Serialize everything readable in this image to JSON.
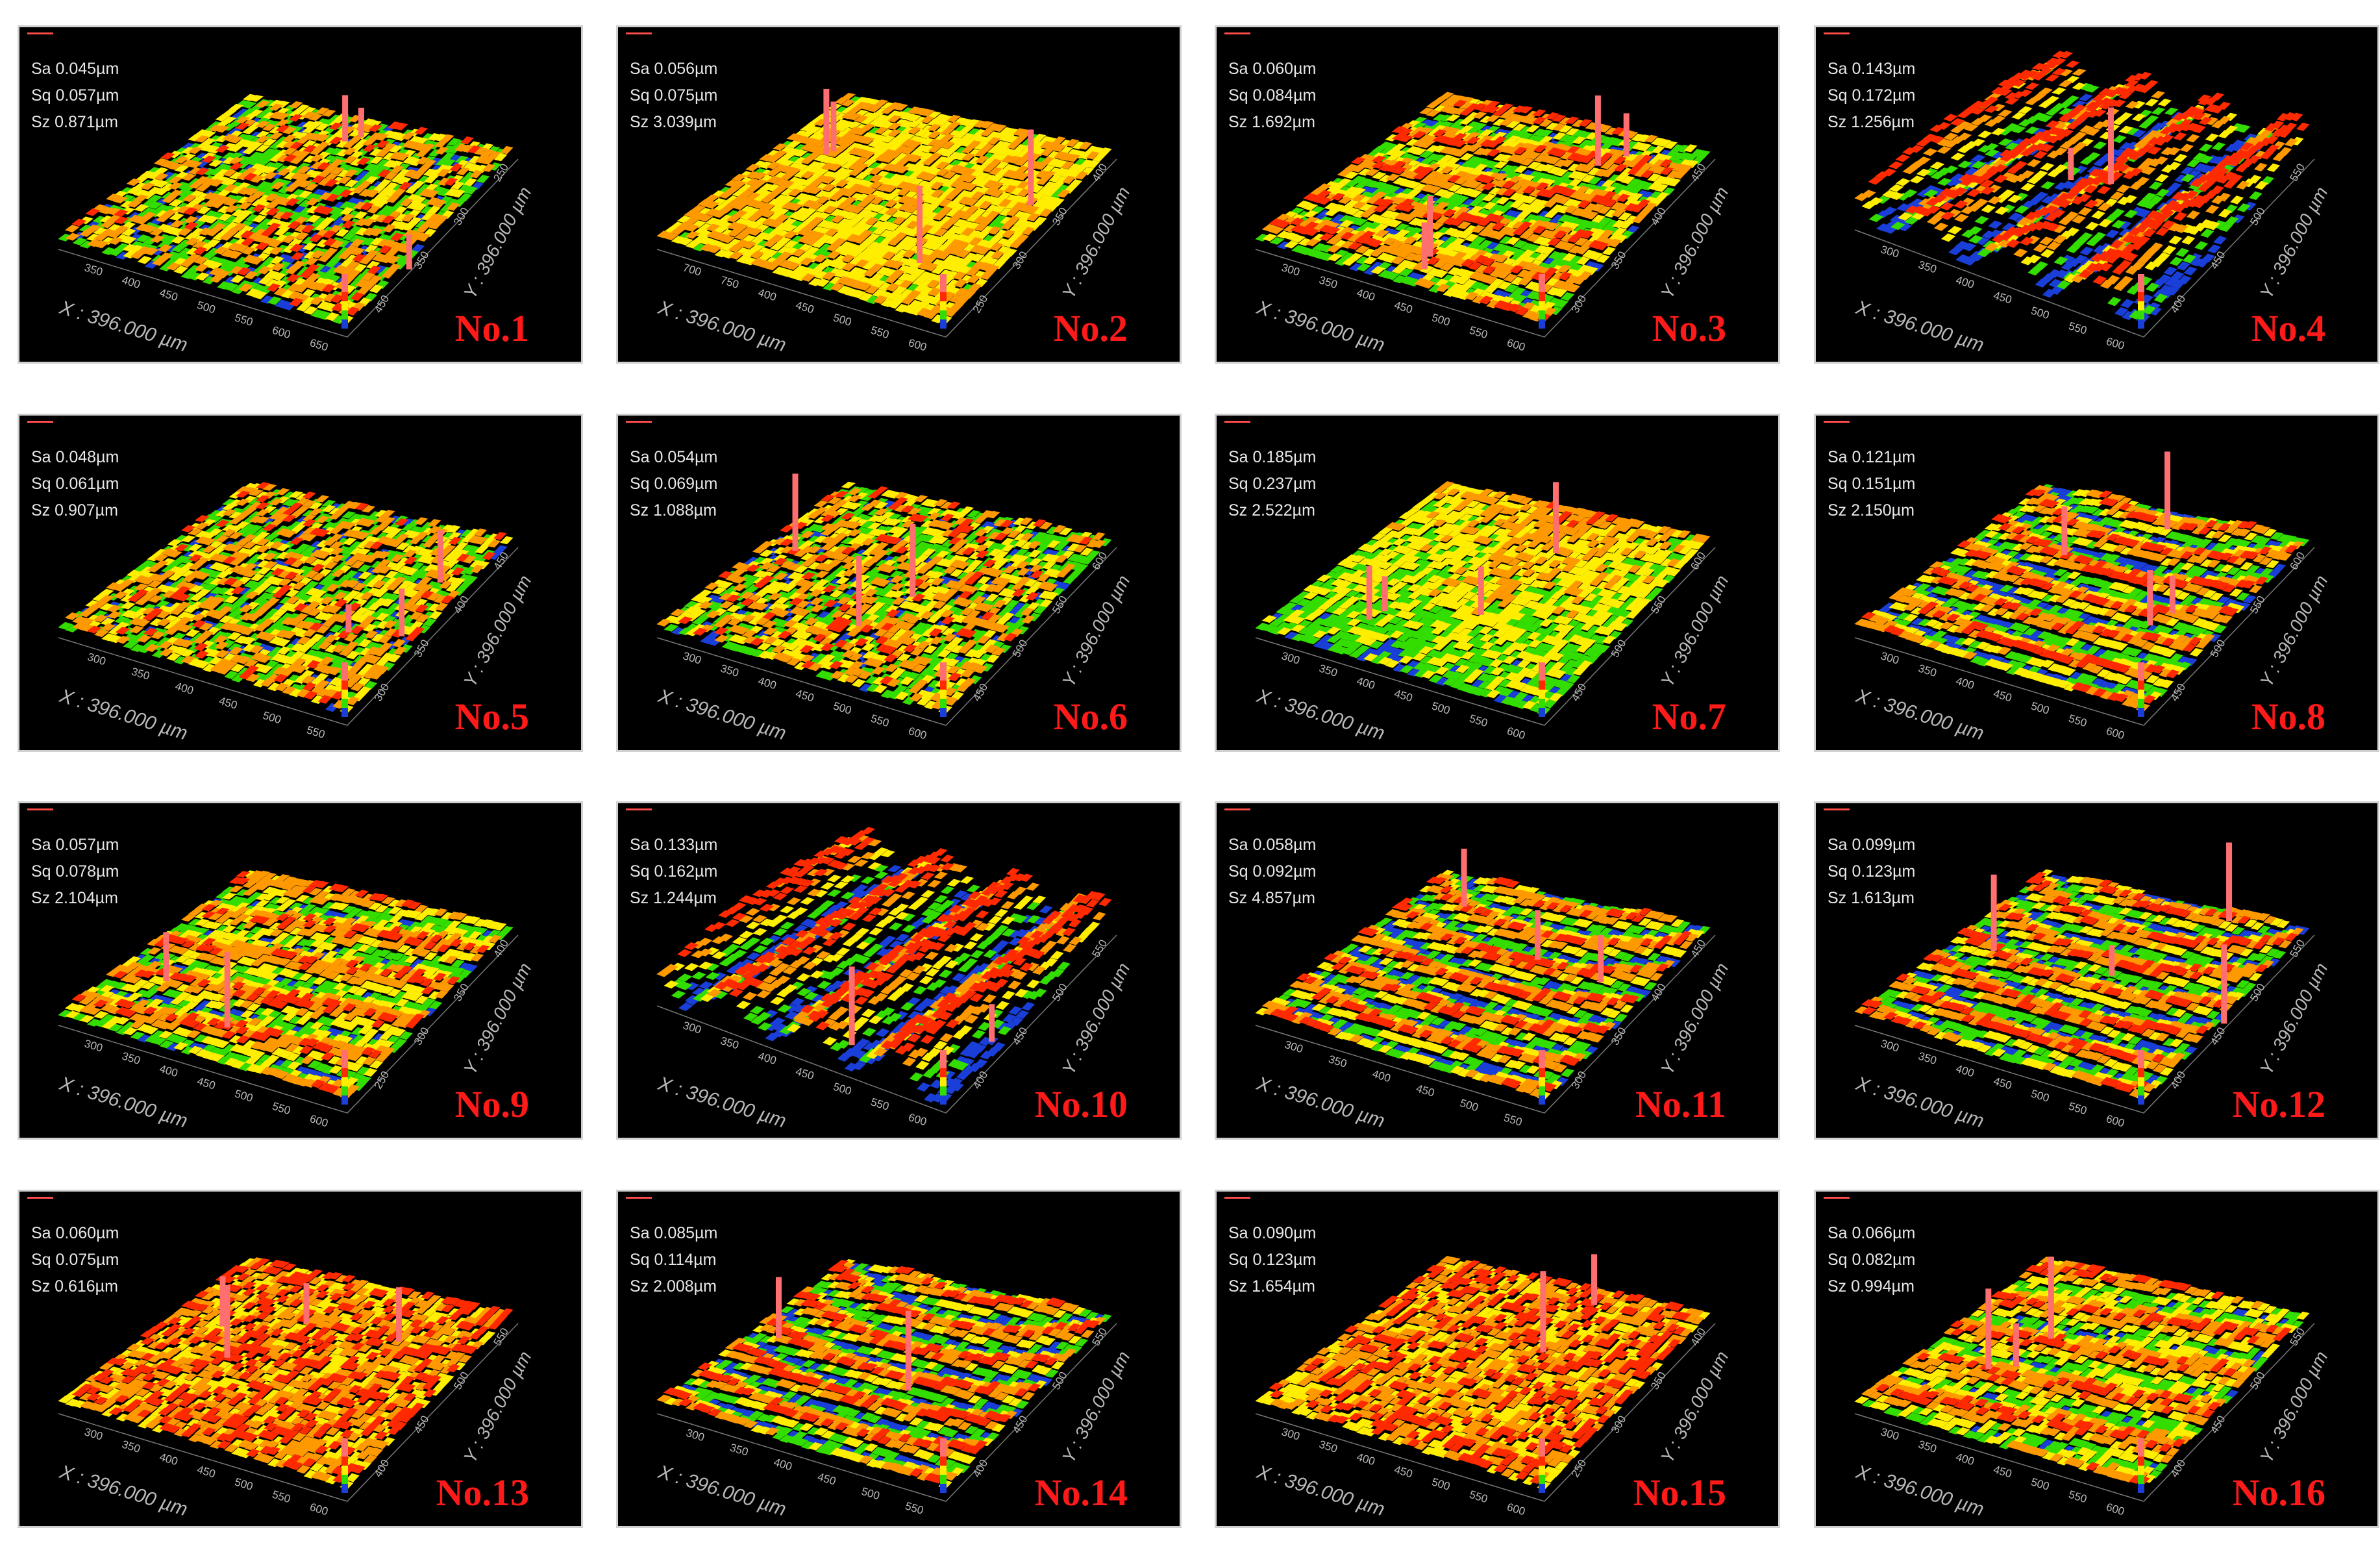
{
  "panels": [
    {
      "sa": "Sa 0.045µm",
      "sq": "Sq 0.057µm",
      "sz": "Sz 0.871µm",
      "label": "No.1",
      "x_axis": "X : 396.000 µm",
      "y_axis": "Y : 396.000 µm",
      "x_ticks": [
        "350",
        "400",
        "450",
        "500",
        "550",
        "600",
        "650"
      ],
      "y_ticks": [
        "450",
        "350",
        "300",
        "250"
      ],
      "style": "speckle"
    },
    {
      "sa": "Sa 0.056µm",
      "sq": "Sq 0.075µm",
      "sz": "Sz 3.039µm",
      "label": "No.2",
      "x_axis": "X : 396.000 µm",
      "y_axis": "Y : 396.000 µm",
      "x_ticks": [
        "700",
        "750",
        "400",
        "450",
        "500",
        "550",
        "600"
      ],
      "y_ticks": [
        "250",
        "300",
        "350",
        "400"
      ],
      "style": "flat"
    },
    {
      "sa": "Sa 0.060µm",
      "sq": "Sq 0.084µm",
      "sz": "Sz 1.692µm",
      "label": "No.3",
      "x_axis": "X : 396.000 µm",
      "y_axis": "Y : 396.000 µm",
      "x_ticks": [
        "300",
        "350",
        "400",
        "450",
        "500",
        "550",
        "600"
      ],
      "y_ticks": [
        "300",
        "350",
        "400",
        "450"
      ],
      "style": "stripes"
    },
    {
      "sa": "Sa 0.143µm",
      "sq": "Sq 0.172µm",
      "sz": "Sz 1.256µm",
      "label": "No.4",
      "x_axis": "X : 396.000 µm",
      "y_axis": "Y : 396.000 µm",
      "x_ticks": [
        "300",
        "350",
        "400",
        "450",
        "500",
        "550",
        "600"
      ],
      "y_ticks": [
        "400",
        "450",
        "500",
        "550"
      ],
      "style": "ridges"
    },
    {
      "sa": "Sa 0.048µm",
      "sq": "Sq 0.061µm",
      "sz": "Sz 0.907µm",
      "label": "No.5",
      "x_axis": "X : 396.000 µm",
      "y_axis": "Y : 396.000 µm",
      "x_ticks": [
        "300",
        "350",
        "400",
        "450",
        "500",
        "550"
      ],
      "y_ticks": [
        "300",
        "350",
        "400",
        "450"
      ],
      "style": "speckle"
    },
    {
      "sa": "Sa 0.054µm",
      "sq": "Sq 0.069µm",
      "sz": "Sz 1.088µm",
      "label": "No.6",
      "x_axis": "X : 396.000 µm",
      "y_axis": "Y : 396.000 µm",
      "x_ticks": [
        "300",
        "350",
        "400",
        "450",
        "500",
        "550",
        "600"
      ],
      "y_ticks": [
        "450",
        "500",
        "550",
        "600"
      ],
      "style": "speckle"
    },
    {
      "sa": "Sa 0.185µm",
      "sq": "Sq 0.237µm",
      "sz": "Sz 2.522µm",
      "label": "No.7",
      "x_axis": "X : 396.000 µm",
      "y_axis": "Y : 396.000 µm",
      "x_ticks": [
        "300",
        "350",
        "400",
        "450",
        "500",
        "550",
        "600"
      ],
      "y_ticks": [
        "450",
        "500",
        "550",
        "600"
      ],
      "style": "dome"
    },
    {
      "sa": "Sa 0.121µm",
      "sq": "Sq 0.151µm",
      "sz": "Sz 2.150µm",
      "label": "No.8",
      "x_axis": "X : 396.000 µm",
      "y_axis": "Y : 396.000 µm",
      "x_ticks": [
        "300",
        "350",
        "400",
        "450",
        "500",
        "550",
        "600"
      ],
      "y_ticks": [
        "450",
        "500",
        "550",
        "600"
      ],
      "style": "arcs"
    },
    {
      "sa": "Sa 0.057µm",
      "sq": "Sq 0.078µm",
      "sz": "Sz 2.104µm",
      "label": "No.9",
      "x_axis": "X : 396.000 µm",
      "y_axis": "Y : 396.000 µm",
      "x_ticks": [
        "300",
        "350",
        "400",
        "450",
        "500",
        "550",
        "600"
      ],
      "y_ticks": [
        "250",
        "300",
        "350",
        "400"
      ],
      "style": "stripes"
    },
    {
      "sa": "Sa 0.133µm",
      "sq": "Sq 0.162µm",
      "sz": "Sz 1.244µm",
      "label": "No.10",
      "x_axis": "X : 396.000 µm",
      "y_axis": "Y : 396.000 µm",
      "x_ticks": [
        "300",
        "350",
        "400",
        "450",
        "500",
        "550",
        "600"
      ],
      "y_ticks": [
        "400",
        "450",
        "500",
        "550"
      ],
      "style": "ridges"
    },
    {
      "sa": "Sa 0.058µm",
      "sq": "Sq 0.092µm",
      "sz": "Sz 4.857µm",
      "label": "No.11",
      "x_axis": "X : 396.000 µm",
      "y_axis": "Y : 396.000 µm",
      "x_ticks": [
        "300",
        "350",
        "400",
        "450",
        "500",
        "550"
      ],
      "y_ticks": [
        "300",
        "350",
        "400",
        "450"
      ],
      "style": "arcs"
    },
    {
      "sa": "Sa 0.099µm",
      "sq": "Sq 0.123µm",
      "sz": "Sz 1.613µm",
      "label": "No.12",
      "x_axis": "X : 396.000 µm",
      "y_axis": "Y : 396.000 µm",
      "x_ticks": [
        "300",
        "350",
        "400",
        "450",
        "500",
        "550",
        "600"
      ],
      "y_ticks": [
        "400",
        "450",
        "500",
        "550"
      ],
      "style": "arcs"
    },
    {
      "sa": "Sa 0.060µm",
      "sq": "Sq 0.075µm",
      "sz": "Sz 0.616µm",
      "label": "No.13",
      "x_axis": "X : 396.000 µm",
      "y_axis": "Y : 396.000 µm",
      "x_ticks": [
        "300",
        "350",
        "400",
        "450",
        "500",
        "550",
        "600"
      ],
      "y_ticks": [
        "400",
        "450",
        "500",
        "550"
      ],
      "style": "hot"
    },
    {
      "sa": "Sa 0.085µm",
      "sq": "Sq 0.114µm",
      "sz": "Sz 2.008µm",
      "label": "No.14",
      "x_axis": "X : 396.000 µm",
      "y_axis": "Y : 396.000 µm",
      "x_ticks": [
        "300",
        "350",
        "400",
        "450",
        "500",
        "550"
      ],
      "y_ticks": [
        "400",
        "450",
        "500",
        "550"
      ],
      "style": "arcs"
    },
    {
      "sa": "Sa 0.090µm",
      "sq": "Sq 0.123µm",
      "sz": "Sz 1.654µm",
      "label": "No.15",
      "x_axis": "X : 396.000 µm",
      "y_axis": "Y : 396.000 µm",
      "x_ticks": [
        "300",
        "350",
        "400",
        "450",
        "500",
        "550",
        "600"
      ],
      "y_ticks": [
        "250",
        "300",
        "350",
        "400"
      ],
      "style": "hot"
    },
    {
      "sa": "Sa 0.066µm",
      "sq": "Sq 0.082µm",
      "sz": "Sz 0.994µm",
      "label": "No.16",
      "x_axis": "X : 396.000 µm",
      "y_axis": "Y : 396.000 µm",
      "x_ticks": [
        "300",
        "350",
        "400",
        "450",
        "500",
        "550",
        "600"
      ],
      "y_ticks": [
        "400",
        "450",
        "500",
        "550"
      ],
      "style": "stripes"
    }
  ],
  "colors": {
    "high": "#ff2a00",
    "mid_high": "#ff9900",
    "mid": "#ffee00",
    "low_mid": "#33dd00",
    "low": "#1a3fd9",
    "label": "#ff1a1a",
    "spike": "#ff6f6f"
  }
}
